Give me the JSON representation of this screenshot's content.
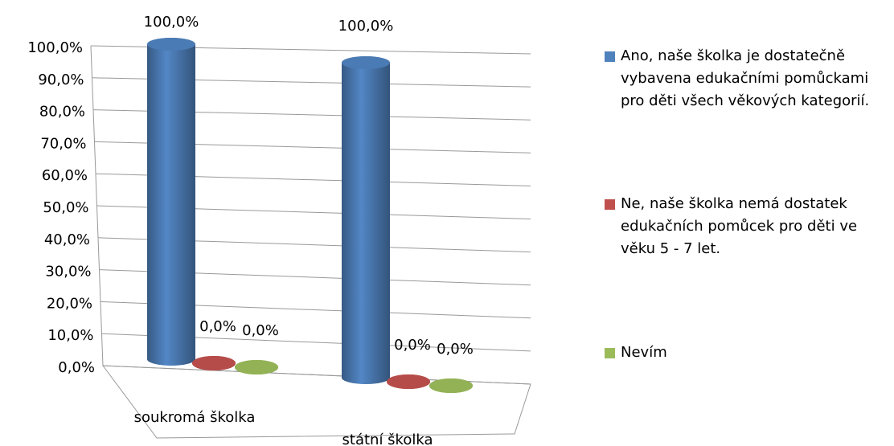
{
  "chart_data": {
    "type": "bar3d",
    "categories": [
      "soukromá školka",
      "státní školka"
    ],
    "series": [
      {
        "name": "Ano, naše školka je dostatečně vybavena edukačními pomůckami pro děti všech věkových kategorií.",
        "color": "#4f81bd",
        "values": [
          100,
          100
        ],
        "value_labels": [
          "100,0%",
          "100,0%"
        ]
      },
      {
        "name": "Ne, naše školka nemá dostatek edukačních pomůcek pro děti ve věku 5 - 7 let.",
        "color": "#c0504d",
        "values": [
          0,
          0
        ],
        "value_labels": [
          "0,0%",
          "0,0%"
        ]
      },
      {
        "name": "Nevím",
        "color": "#9bbb59",
        "values": [
          0,
          0
        ],
        "value_labels": [
          "0,0%",
          "0,0%"
        ]
      }
    ],
    "ylim": [
      0,
      100
    ],
    "yticks": [
      {
        "value": 0,
        "label": "0,0%"
      },
      {
        "value": 10,
        "label": "10,0%"
      },
      {
        "value": 20,
        "label": "20,0%"
      },
      {
        "value": 30,
        "label": "30,0%"
      },
      {
        "value": 40,
        "label": "40,0%"
      },
      {
        "value": 50,
        "label": "50,0%"
      },
      {
        "value": 60,
        "label": "60,0%"
      },
      {
        "value": 70,
        "label": "70,0%"
      },
      {
        "value": 80,
        "label": "80,0%"
      },
      {
        "value": 90,
        "label": "90,0%"
      },
      {
        "value": 100,
        "label": "100,0%"
      }
    ],
    "grid": true,
    "legend": "right"
  }
}
